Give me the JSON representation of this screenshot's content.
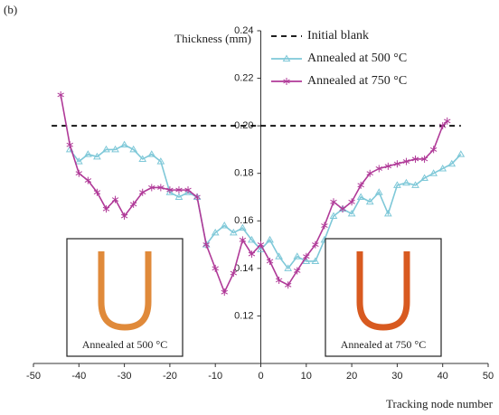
{
  "chart_data": {
    "type": "line",
    "panel_label": "(b)",
    "ylabel": "Thickness (mm)",
    "xlabel": "Tracking node number",
    "xlim": [
      -50,
      50
    ],
    "ylim": [
      0.1,
      0.24
    ],
    "xticks": [
      -50,
      -40,
      -30,
      -20,
      -10,
      0,
      10,
      20,
      30,
      40,
      50
    ],
    "yticks": [
      0.12,
      0.14,
      0.16,
      0.18,
      {
        "value": 0.2,
        "label": "0.20"
      },
      0.22,
      0.24
    ],
    "series": [
      {
        "name": "Initial blank",
        "color": "#000000",
        "marker": "none",
        "dashed": true,
        "x": [
          -46,
          44
        ],
        "values": [
          0.2,
          0.2
        ]
      },
      {
        "name": "Annealed at 500 °C",
        "color": "#7ec8d8",
        "marker": "triangle",
        "dashed": false,
        "x": [
          -42,
          -40,
          -38,
          -36,
          -34,
          -32,
          -30,
          -28,
          -26,
          -24,
          -22,
          -20,
          -18,
          -16,
          -14,
          -12,
          -10,
          -8,
          -6,
          -4,
          -2,
          0,
          2,
          4,
          6,
          8,
          10,
          12,
          14,
          16,
          18,
          20,
          22,
          24,
          26,
          28,
          30,
          32,
          34,
          36,
          38,
          40,
          42,
          44
        ],
        "values": [
          0.19,
          0.185,
          0.188,
          0.187,
          0.19,
          0.19,
          0.192,
          0.19,
          0.186,
          0.188,
          0.185,
          0.172,
          0.17,
          0.172,
          0.17,
          0.15,
          0.155,
          0.158,
          0.155,
          0.157,
          0.152,
          0.148,
          0.152,
          0.145,
          0.14,
          0.145,
          0.143,
          0.143,
          0.152,
          0.162,
          0.165,
          0.163,
          0.17,
          0.168,
          0.172,
          0.163,
          0.175,
          0.176,
          0.175,
          0.178,
          0.18,
          0.182,
          0.184,
          0.188
        ]
      },
      {
        "name": "Annealed at 750 °C",
        "color": "#b03a98",
        "marker": "star",
        "dashed": false,
        "x": [
          -44,
          -42,
          -40,
          -38,
          -36,
          -34,
          -32,
          -30,
          -28,
          -26,
          -24,
          -22,
          -20,
          -18,
          -16,
          -14,
          -12,
          -10,
          -8,
          -6,
          -4,
          -2,
          0,
          2,
          4,
          6,
          8,
          10,
          12,
          14,
          16,
          18,
          20,
          22,
          24,
          26,
          28,
          30,
          32,
          34,
          36,
          38,
          40,
          41
        ],
        "values": [
          0.213,
          0.192,
          0.18,
          0.177,
          0.172,
          0.165,
          0.169,
          0.162,
          0.167,
          0.172,
          0.174,
          0.174,
          0.173,
          0.173,
          0.173,
          0.17,
          0.15,
          0.14,
          0.13,
          0.138,
          0.152,
          0.146,
          0.15,
          0.143,
          0.135,
          0.133,
          0.139,
          0.145,
          0.15,
          0.158,
          0.168,
          0.165,
          0.168,
          0.175,
          0.18,
          0.182,
          0.183,
          0.184,
          0.185,
          0.186,
          0.186,
          0.19,
          0.2,
          0.202
        ]
      }
    ]
  },
  "insets": [
    {
      "caption": "Annealed at 500 °C",
      "color": "#e08a3a"
    },
    {
      "caption": "Annealed at 750 °C",
      "color": "#d85a20"
    }
  ]
}
